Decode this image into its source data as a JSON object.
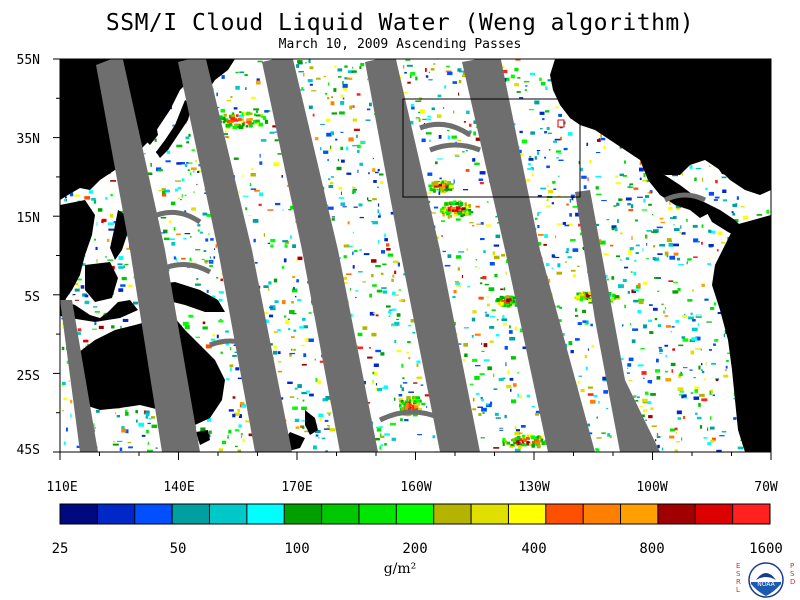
{
  "title": "SSM/I Cloud Liquid Water (Weng algorithm)",
  "subtitle": "March 10, 2009  Ascending Passes",
  "lat_labels": [
    "55N",
    "35N",
    "15N",
    "5S",
    "25S",
    "45S"
  ],
  "lon_labels": [
    "110E",
    "140E",
    "170E",
    "160W",
    "130W",
    "100W",
    "70W"
  ],
  "colorbar": {
    "colors": [
      "#000a80",
      "#0028c8",
      "#0050ff",
      "#00a0a0",
      "#00c8c8",
      "#00ffff",
      "#00a000",
      "#00c800",
      "#00e600",
      "#00ff00",
      "#b4b400",
      "#e0e000",
      "#ffff00",
      "#ff5000",
      "#ff8000",
      "#ffa000",
      "#a00000",
      "#dc0000",
      "#ff2020"
    ],
    "tick_labels": [
      "25",
      "50",
      "100",
      "200",
      "400",
      "800",
      "1600"
    ],
    "units": "g/m²"
  },
  "colors": {
    "land": "#000000",
    "no_data_swath_gap": "#6e6e6e",
    "ocean_clear": "#ffffff"
  },
  "logo": {
    "left_letters": "ESRL",
    "right_letters": "PSD",
    "emblem_text": "NOAA"
  }
}
